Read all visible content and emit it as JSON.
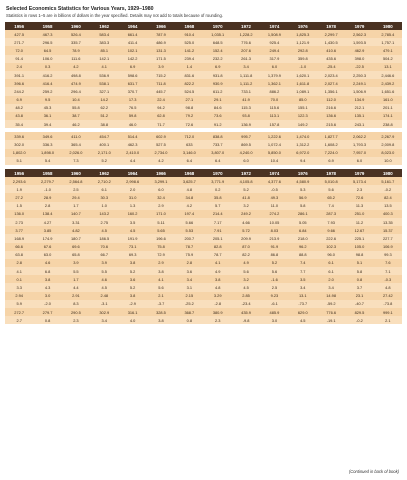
{
  "header": {
    "title": "Selected Economics Statistics for Various Years, 1929–1980",
    "subtitle": "Statistics in rows 1–5 are in billions of dollars in the year specified. Details may not add to totals because of rounding."
  },
  "years": [
    "1956",
    "1958",
    "1960",
    "1962",
    "1964",
    "1966",
    "1968",
    "1970",
    "1972",
    "1974",
    "1976",
    "1978",
    "1979",
    "1980"
  ],
  "section1": [
    [
      "427.5",
      "467.3",
      "526.4",
      "583.4",
      "661.4",
      "787.9",
      "910.4",
      "1,035.1",
      "1,228.2",
      "1,508.9",
      "1,825.3",
      "2,299.7",
      "2,562.3",
      "2,785.4"
    ],
    [
      "271.7",
      "296.5",
      "335.7",
      "383.3",
      "411.4",
      "486.9",
      "525.0",
      "648.5",
      "776.6",
      "925.4",
      "1,121.9",
      "1,430.5",
      "1,593.5",
      "1,757.1"
    ],
    [
      "72.0",
      "64.5",
      "78.9",
      "85.1",
      "102.1",
      "131.3",
      "141.2",
      "152.4",
      "207.6",
      "249.4",
      "292.8",
      "410.6",
      "462.9",
      "479.1"
    ],
    [
      "91.4",
      "106.0",
      "111.6",
      "142.1",
      "142.2",
      "171.5",
      "239.4",
      "232.2",
      "261.3",
      "317.9",
      "359.8",
      "435.6",
      "398.0",
      "504.2"
    ],
    [
      "2.4",
      "0.3",
      "4.2",
      "4.1",
      "6.9",
      "3.9",
      "1.4",
      "6.9",
      "3.4",
      "6.0",
      "-1.0",
      "-25.4",
      "-22.5",
      "13.1"
    ],
    [
      "391.1",
      "416.2",
      "498.8",
      "536.9",
      "598.6",
      "715.2",
      "831.6",
      "931.8",
      "1,111.8",
      "1,379.9",
      "1,620.1",
      "2,023.4",
      "2,250.3",
      "2,446.6"
    ],
    [
      "396.6",
      "416.4",
      "474.9",
      "538.1",
      "631.7",
      "711.8",
      "822.2",
      "930.9",
      "1,111.2",
      "1,362.1",
      "1,611.8",
      "2,027.4",
      "2,249.1",
      "2,439.2"
    ],
    [
      "244.2",
      "259.2",
      "296.4",
      "327.1",
      "370.7",
      "445.7",
      "524.5",
      "611.2",
      "733.1",
      "886.2",
      "1,089.1",
      "1,356.1",
      "1,506.9",
      "1,651.6"
    ],
    [
      "6.9",
      "9.5",
      "10.4",
      "14.2",
      "17.3",
      "22.4",
      "27.1",
      "29.1",
      "41.9",
      "70.0",
      "85.0",
      "112.0",
      "134.9",
      "161.0"
    ],
    [
      "48.2",
      "45.3",
      "55.8",
      "62.2",
      "76.5",
      "94.2",
      "98.8",
      "84.6",
      "115.3",
      "115.6",
      "155.1",
      "216.6",
      "212.1",
      "201.1"
    ],
    [
      "43.8",
      "36.1",
      "38.7",
      "51.2",
      "59.8",
      "62.8",
      "79.2",
      "73.6",
      "93.8",
      "113.1",
      "122.3",
      "136.6",
      "135.1",
      "174.1"
    ],
    [
      "35.4",
      "39.4",
      "46.2",
      "38.8",
      "46.0",
      "71.7",
      "72.6",
      "91.2",
      "136.9",
      "157.8",
      "149.2",
      "215.6",
      "243.1",
      "238.8"
    ]
  ],
  "section2": [
    [
      "339.6",
      "349.6",
      "411.0",
      "454.7",
      "514.4",
      "602.9",
      "712.0",
      "838.8",
      "995.7",
      "1,222.6",
      "1,474.0",
      "1,827.7",
      "2,062.2",
      "2,267.9"
    ],
    [
      "302.0",
      "336.3",
      "365.4",
      "400.1",
      "462.3",
      "527.5",
      "633",
      "733.7",
      "869.5",
      "1,072.4",
      "1,312.2",
      "1,608.2",
      "1,793.3",
      "2,009.8"
    ],
    [
      "1,802.0",
      "1,898.0",
      "2,026.0",
      "2,171.0",
      "2,410.0",
      "2,734.0",
      "3,146.0",
      "3,807.0",
      "4,240.0",
      "5,850.0",
      "6,972.0",
      "7,224.0",
      "7,957.0",
      "8,023.0"
    ],
    [
      "5.1",
      "5.4",
      "7.3",
      "5.2",
      "4.4",
      "4.2",
      "6.4",
      "6.4",
      "6.0",
      "10.4",
      "9.4",
      "6.9",
      "6.0",
      "10.0"
    ]
  ],
  "section3": [
    [
      "2,293.6",
      "2,279.7",
      "2,564.8",
      "2,710.2",
      "2,998.6",
      "3,299.1",
      "3,625.7",
      "3,771.9",
      "4,105.8",
      "4,377.6",
      "4,580.9",
      "5,010.8",
      "5,173.4",
      "5,161.7"
    ],
    [
      "1.9",
      "-1.0",
      "2.5",
      "6.1",
      "2.0",
      "6.0",
      "4.8",
      "0.2",
      "5.2",
      "-0.5",
      "5.3",
      "5.6",
      "2.3",
      "-0.2"
    ],
    [
      "27.2",
      "28.9",
      "29.4",
      "30.3",
      "31.0",
      "32.4",
      "34.8",
      "35.8",
      "41.8",
      "49.3",
      "56.9",
      "65.2",
      "72.6",
      "82.4"
    ],
    [
      "1.5",
      "2.8",
      "1.7",
      "1.0",
      "1.3",
      "2.9",
      "4.2",
      "5.7",
      "3.2",
      "11.0",
      "5.8",
      "7.4",
      "11.3",
      "13.5"
    ],
    [
      "136.0",
      "138.4",
      "140.7",
      "143.2",
      "160.2",
      "171.0",
      "197.4",
      "214.4",
      "249.2",
      "274.2",
      "286.1",
      "287.3",
      "251.0",
      "400.3"
    ],
    [
      "2.73",
      "4.27",
      "3.31",
      "2.75",
      "3.5",
      "5.11",
      "5.66",
      "7.17",
      "4.66",
      "10.05",
      "5.05",
      "7.93",
      "11.2",
      "13.35"
    ],
    [
      "3.77",
      "3.85",
      "4.82",
      "4.5",
      "4.5",
      "5.65",
      "5.53",
      "7.91",
      "5.72",
      "8.03",
      "6.84",
      "9.66",
      "12.67",
      "15.37"
    ],
    [
      "168.9",
      "174.9",
      "180.7",
      "186.5",
      "191.9",
      "196.6",
      "200.7",
      "205.1",
      "209.9",
      "213.9",
      "218.0",
      "222.6",
      "225.1",
      "227.7"
    ],
    [
      "66.6",
      "67.6",
      "69.6",
      "70.6",
      "73.1",
      "75.8",
      "78.7",
      "82.8",
      "87.0",
      "91.9",
      "96.2",
      "102.3",
      "105.0",
      "106.9"
    ],
    [
      "63.8",
      "63.0",
      "65.8",
      "66.7",
      "69.3",
      "72.9",
      "75.9",
      "78.7",
      "82.2",
      "86.8",
      "88.8",
      "96.0",
      "98.8",
      "99.3"
    ],
    [
      "2.8",
      "4.6",
      "3.9",
      "3.9",
      "3.8",
      "2.9",
      "2.8",
      "4.1",
      "4.9",
      "5.2",
      "7.4",
      "6.1",
      "5.1",
      "7.6"
    ],
    [
      "4.1",
      "6.8",
      "5.5",
      "5.5",
      "5.2",
      "3.8",
      "3.6",
      "4.9",
      "5.6",
      "5.6",
      "7.7",
      "6.1",
      "5.8",
      "7.1"
    ],
    [
      "0.1",
      "3.8",
      "1.7",
      "4.6",
      "3.6",
      "4.1",
      "3.4",
      "3.8",
      "3.2",
      "-1.6",
      "3.5",
      "2.0",
      "0.8",
      "-0.3"
    ],
    [
      "3.3",
      "4.3",
      "4.4",
      "4.5",
      "5.2",
      "5.6",
      "3.1",
      "4.8",
      "4.5",
      "2.5",
      "3.4",
      "3.4",
      "3.7",
      "4.8"
    ],
    [
      "2.94",
      "3.0",
      "2.91",
      "2.48",
      "3.8",
      "2.1",
      "2.15",
      "3.29",
      "2.85",
      "9.23",
      "13.1",
      "14.98",
      "23.1",
      "27.42"
    ],
    [
      "5.9",
      "-2.0",
      "8.3",
      "-3.1",
      "-2.9",
      "-3.7",
      "-25.2",
      "-2.8",
      "-23.4",
      "-6.1",
      "-73.7",
      "-59.2",
      "-40.7",
      "-73.8"
    ],
    [
      "272.7",
      "279.7",
      "290.5",
      "302.9",
      "316.1",
      "328.5",
      "368.7",
      "380.9",
      "435.9",
      "485.9",
      "629.0",
      "776.6",
      "829.5",
      "999.1"
    ],
    [
      "2.7",
      "0.8",
      "2.3",
      "3.4",
      "4.0",
      "3.8",
      "0.8",
      "2.3",
      "-9.8",
      "3.0",
      "4.5",
      "-19.1",
      "-0.2",
      "2.1"
    ]
  ],
  "footer": "(Continued in back of book)"
}
